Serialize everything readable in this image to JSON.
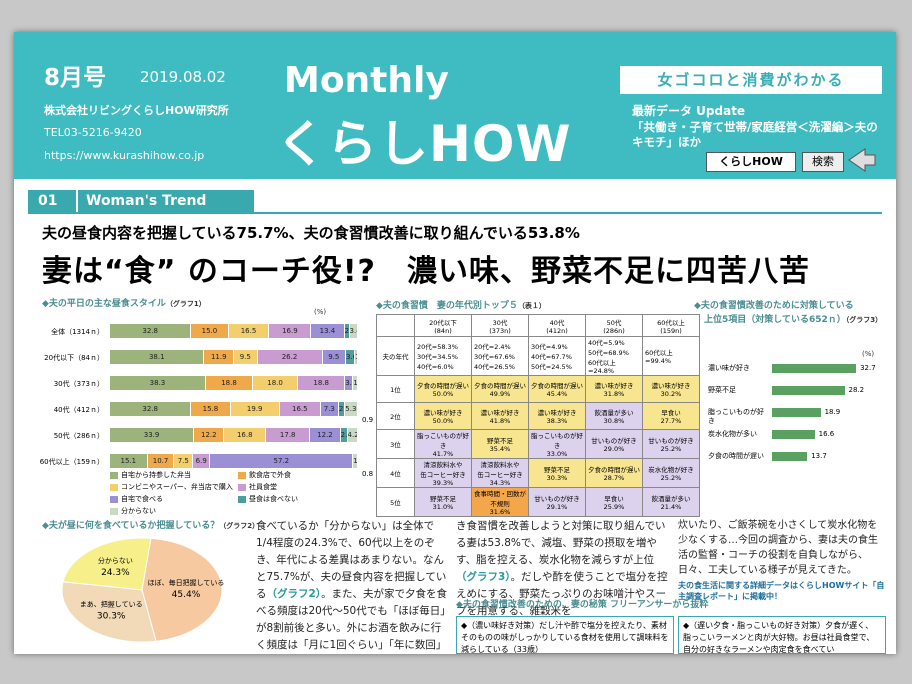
{
  "header": {
    "issue": "8月号",
    "date": "2019.08.02",
    "company": "株式会社リビングくらしHOW研究所",
    "tel": "TEL03-5216-9420",
    "url": "https://www.kurashihow.co.jp",
    "brand_line1": "Monthly",
    "brand_line2": "くらしHOW",
    "tagline": "女ゴコロと消費がわかる",
    "update_title": "最新データ Update",
    "update_body": "「共働き・子育て世帯/家庭経営＜洗濯編＞夫のキモチ」ほか",
    "btn_kurashi": "くらしHOW",
    "btn_search": "検索"
  },
  "section": {
    "num": "01",
    "title": "Woman's Trend"
  },
  "subtitle": "夫の昼食内容を把握している75.7%、夫の食習慣改善に取り組んでいる53.8%",
  "headline": "妻は“食” のコーチ役!?　濃い味、野菜不足に四苦八苦",
  "graph1": {
    "title": "◆夫の平日の主な昼食スタイル",
    "tag": "（グラフ1）",
    "unit": "(%)",
    "rows": [
      {
        "label": "全体（1314ｎ）",
        "values": [
          "32.8",
          "15.0",
          "16.5",
          "16.9",
          "13.4",
          "2.0",
          "3.4"
        ]
      },
      {
        "label": "20代以下（84ｎ）",
        "values": [
          "38.1",
          "11.9",
          "9.5",
          "26.2",
          "9.5",
          "3.6",
          "1.2"
        ]
      },
      {
        "label": "30代（373ｎ）",
        "values": [
          "38.3",
          "18.8",
          "18.0",
          "18.8",
          "3.2",
          "",
          "1.9"
        ]
      },
      {
        "label": "40代（412ｎ）",
        "values": [
          "32.8",
          "15.8",
          "19.9",
          "16.5",
          "7.3",
          "2.4",
          "5.3"
        ]
      },
      {
        "label": "50代（286ｎ）",
        "values": [
          "33.9",
          "12.2",
          "16.8",
          "17.8",
          "12.2",
          "2.8",
          "4.2"
        ]
      },
      {
        "label": "60代以上（159ｎ）",
        "values": [
          "15.1",
          "10.7",
          "7.5",
          "6.9",
          "57.2",
          "",
          "1.9"
        ]
      }
    ],
    "extra": [
      "0.9",
      "0.8"
    ],
    "legend": [
      "自宅から持参した弁当",
      "飲食店で外食",
      "コンビニやスーパー、弁当店で購入",
      "社員食堂",
      "自宅で食べる",
      "昼食は食べない",
      "分からない"
    ]
  },
  "graph2": {
    "title": "◆夫の食習慣　妻の年代別トップ５",
    "tag": "（表１）",
    "head": [
      "20代以下\n(84n)",
      "30代\n(373n)",
      "40代\n(412n)",
      "50代\n(286n)",
      "60代以上\n(159n)"
    ],
    "agerow": [
      "20代=58.3%\n30代=34.5%\n40代=6.0%",
      "20代=2.4%\n30代=67.6%\n40代=26.5%",
      "30代=4.9%\n40代=67.7%\n50代=24.5%",
      "40代=5.9%\n50代=68.9%\n60代以上=24.8%",
      "60代以上=99.4%"
    ],
    "rowlabels": [
      "夫の年代",
      "1位",
      "2位",
      "3位",
      "4位",
      "5位"
    ],
    "rows": [
      [
        "夕食の時間が遅い\n50.0%",
        "夕食の時間が遅い\n49.9%",
        "夕食の時間が遅い\n45.4%",
        "濃い味が好き\n31.8%",
        "濃い味が好き\n30.2%"
      ],
      [
        "濃い味が好き\n50.0%",
        "濃い味が好き\n41.8%",
        "濃い味が好き\n38.3%",
        "飲酒量が多い\n30.8%",
        "早食い\n27.7%"
      ],
      [
        "脂っこいものが好き\n41.7%",
        "野菜不足\n35.4%",
        "脂っこいものが好き\n33.0%",
        "甘いものが好き\n29.0%",
        "甘いものが好き\n25.2%"
      ],
      [
        "清涼飲料水や\n缶コーヒー好き\n39.3%",
        "清涼飲料水や\n缶コーヒー好き\n34.3%",
        "野菜不足\n30.3%",
        "夕食の時間が遅い\n28.7%",
        "炭水化物が好き\n25.2%"
      ],
      [
        "野菜不足\n31.0%",
        "食事時間・回数が\n不規則\n31.6%",
        "甘いものが好き\n29.1%",
        "早食い\n25.9%",
        "飲酒量が多い\n21.4%"
      ]
    ]
  },
  "graph3": {
    "title": "◆夫の食習慣改善のために対策している",
    "title2": "上位5項目（対策している652ｎ）",
    "tag": "（グラフ3）",
    "unit": "(%)",
    "items": [
      {
        "label": "濃い味が好き",
        "value": 32.7
      },
      {
        "label": "野菜不足",
        "value": 28.2
      },
      {
        "label": "脂っこいものが好き",
        "value": 18.9
      },
      {
        "label": "炭水化物が多い",
        "value": 16.6
      },
      {
        "label": "夕食の時間が遅い",
        "value": 13.7
      }
    ]
  },
  "graph4": {
    "title": "◆夫が昼に何を食べているか把握している？",
    "tag": "（グラフ2）",
    "slices": [
      {
        "label": "ほぼ、毎日把握している",
        "value": 45.4
      },
      {
        "label": "まあ、把握している",
        "value": 30.3
      },
      {
        "label": "分からない",
        "value": 24.3
      }
    ]
  },
  "body": {
    "col1": [
      "食べているか「分からない」は全体で1/4程度の24.3%で、60代以上をのぞき、年代による差異はあまりない。なんと75.7%が、夫の昼食内容を把握している",
      "（グラフ2）",
      "。また、夫が家で夕食を食べる頻度は20代〜50代でも「ほぼ毎日」が8割前後と多い。外にお酒を飲みに行く頻度は「月に1回ぐらい」「年に数回」がボリュームゾーンの一方、家でお酒を飲む頻度は「ほぼ毎日」+「週に2、3回ぐらい」が52.2%と半数以上。夕食は"
    ],
    "col2": [
      "き食習慣を改善しようと対策に取り組んでいる妻は53.8%で、減塩、野菜の摂取を増やす、脂を控える、炭水化物を減らすが上位",
      "（グラフ3）",
      "。だしや酢を使うことで塩分を控えめにする、野菜たっぷりのお味噌汁やスープを用意する、雑穀米を"
    ],
    "col3": "炊いたり、ご飯茶碗を小さくして炭水化物を少なくする…今回の調査から、妻は夫の食生活の監督・コーチの役割を自負しながら、日々、工夫している様子が見えてきた。",
    "promo": "夫の食生活に関する詳細データはくらしHOWサイト「自主調査レポート」に掲載中！"
  },
  "voices": {
    "title": "◆夫の食習慣改善のための、妻の秘策 フリーアンサーから抜粋",
    "v1": "◆（濃い味好き対策）だし汁や酢で塩分を控えたり、素材そのものの味がしっかりしている食材を使用して調味料を減らしている（33歳）",
    "v2": "◆（遅い夕食・脂っこいもの好き対策）夕食が遅く、脂っこいラーメンと肉が大好物。お昼は社員食堂で、自分の好きなラーメンや肉定食を食べてい"
  }
}
